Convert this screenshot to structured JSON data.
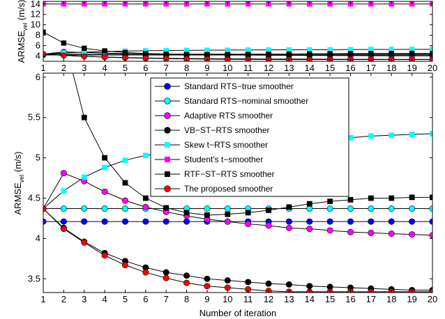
{
  "chart_data": [
    {
      "type": "line",
      "panel": "top",
      "title": "",
      "xlabel": "",
      "ylabel": "ARMSE",
      "ylabel_sub": "vel",
      "ylabel_unit": " (m/s)",
      "xlim": [
        1,
        20
      ],
      "ylim": [
        3,
        14.5
      ],
      "xticks": [
        1,
        2,
        3,
        4,
        5,
        6,
        7,
        8,
        9,
        10,
        11,
        12,
        13,
        14,
        15,
        16,
        17,
        18,
        19,
        20
      ],
      "yticks": [
        4,
        6,
        8,
        10,
        12,
        14
      ],
      "grid": false,
      "x": [
        1,
        2,
        3,
        4,
        5,
        6,
        7,
        8,
        9,
        10,
        11,
        12,
        13,
        14,
        15,
        16,
        17,
        18,
        19,
        20
      ],
      "series": [
        {
          "name": "Standard RTS−true smoother",
          "color": "#0000ff",
          "marker": "circle",
          "values": [
            4.21,
            4.21,
            4.21,
            4.21,
            4.21,
            4.21,
            4.21,
            4.21,
            4.21,
            4.21,
            4.21,
            4.21,
            4.21,
            4.21,
            4.21,
            4.21,
            4.21,
            4.21,
            4.21,
            4.21
          ]
        },
        {
          "name": "Standard RTS−nominal smoother",
          "color": "#00ffff",
          "marker": "circle",
          "values": [
            4.37,
            4.37,
            4.37,
            4.37,
            4.37,
            4.37,
            4.37,
            4.37,
            4.37,
            4.37,
            4.37,
            4.37,
            4.37,
            4.37,
            4.37,
            4.37,
            4.37,
            4.37,
            4.37,
            4.37
          ]
        },
        {
          "name": "Adaptive RTS smoother",
          "color": "#ff00ff",
          "marker": "circle",
          "values": [
            4.37,
            4.81,
            4.71,
            4.58,
            4.47,
            4.39,
            4.33,
            4.28,
            4.24,
            4.21,
            4.18,
            4.16,
            4.13,
            4.12,
            4.1,
            4.08,
            4.07,
            4.06,
            4.05,
            4.04
          ]
        },
        {
          "name": "VB−ST−RTS smoother",
          "color": "#000000",
          "marker": "circle",
          "values": [
            4.37,
            4.13,
            3.96,
            3.82,
            3.72,
            3.64,
            3.58,
            3.54,
            3.5,
            3.48,
            3.46,
            3.44,
            3.43,
            3.41,
            3.4,
            3.39,
            3.38,
            3.37,
            3.36,
            3.36
          ]
        },
        {
          "name": "Skew t−RTS smoother",
          "color": "#00ffff",
          "marker": "square",
          "values": [
            4.37,
            4.59,
            4.76,
            4.88,
            4.97,
            5.03,
            5.07,
            5.1,
            5.13,
            5.15,
            5.17,
            5.19,
            5.2,
            5.22,
            5.23,
            5.25,
            5.27,
            5.28,
            5.29,
            5.3
          ]
        },
        {
          "name": "Student's t−smoother",
          "color": "#ff00ff",
          "marker": "square",
          "values": [
            14,
            14,
            14,
            14,
            14,
            14,
            14,
            14,
            14,
            14,
            14,
            14,
            14,
            14,
            14,
            14,
            14,
            14,
            14,
            14
          ]
        },
        {
          "name": "RTF−ST−RTS smoother",
          "color": "#000000",
          "marker": "square",
          "values": [
            8.6,
            6.5,
            5.5,
            5.0,
            4.69,
            4.5,
            4.38,
            4.32,
            4.29,
            4.3,
            4.32,
            4.35,
            4.39,
            4.43,
            4.46,
            4.48,
            4.5,
            4.5,
            4.51,
            4.51
          ]
        },
        {
          "name": "The proposed smoother",
          "color": "#ff0000",
          "marker": "circle",
          "values": [
            4.37,
            4.12,
            3.95,
            3.79,
            3.67,
            3.58,
            3.51,
            3.45,
            3.41,
            3.39,
            3.37,
            3.35,
            3.34,
            3.34,
            3.34,
            3.34,
            3.34,
            3.34,
            3.34,
            3.34
          ]
        }
      ]
    },
    {
      "type": "line",
      "panel": "bottom",
      "title": "",
      "xlabel": "Number of iteration",
      "ylabel": "ARMSE",
      "ylabel_sub": "vel",
      "ylabel_unit": " (m/s)",
      "xlim": [
        1,
        20
      ],
      "ylim": [
        3.33,
        6.05
      ],
      "xticks": [
        1,
        2,
        3,
        4,
        5,
        6,
        7,
        8,
        9,
        10,
        11,
        12,
        13,
        14,
        15,
        16,
        17,
        18,
        19,
        20
      ],
      "yticks": [
        3.5,
        4,
        4.5,
        5,
        5.5,
        6
      ],
      "grid": false,
      "legend_position": "top-center",
      "series_ref": "same as top panel"
    }
  ]
}
